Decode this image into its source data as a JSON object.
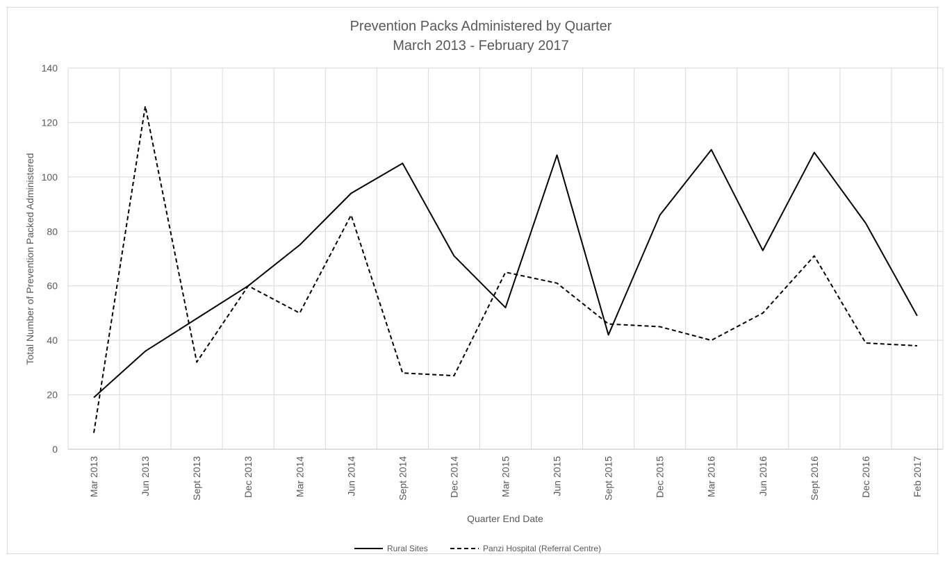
{
  "chart_data": {
    "type": "line",
    "title": "Prevention Packs Administered by Quarter",
    "subtitle": "March 2013 - February 2017",
    "xlabel": "Quarter End Date",
    "ylabel": "Total Number of Prevention Packed Administered",
    "ylim": [
      0,
      140
    ],
    "yticks": [
      "0",
      "20",
      "40",
      "60",
      "80",
      "100",
      "120",
      "140"
    ],
    "yticks_values": [
      0,
      20,
      40,
      60,
      80,
      100,
      120,
      140
    ],
    "grid": true,
    "legend_position": "bottom",
    "categories": [
      "Mar 2013",
      "Jun 2013",
      "Sept 2013",
      "Dec 2013",
      "Mar 2014",
      "Jun 2014",
      "Sept 2014",
      "Dec 2014",
      "Mar 2015",
      "Jun 2015",
      "Sept 2015",
      "Dec 2015",
      "Mar 2016",
      "Jun 2016",
      "Sept 2016",
      "Dec 2016",
      "Feb 2017"
    ],
    "series": [
      {
        "name": "Rural Sites",
        "style": "solid",
        "color": "#000000",
        "values": [
          19,
          36,
          48,
          60,
          75,
          94,
          105,
          71,
          52,
          108,
          42,
          86,
          110,
          73,
          109,
          83,
          49
        ]
      },
      {
        "name": "Panzi Hospital (Referral Centre)",
        "style": "dashed",
        "color": "#000000",
        "values": [
          6,
          126,
          32,
          60,
          50,
          86,
          28,
          27,
          65,
          61,
          46,
          45,
          40,
          50,
          71,
          39,
          38
        ]
      }
    ]
  }
}
